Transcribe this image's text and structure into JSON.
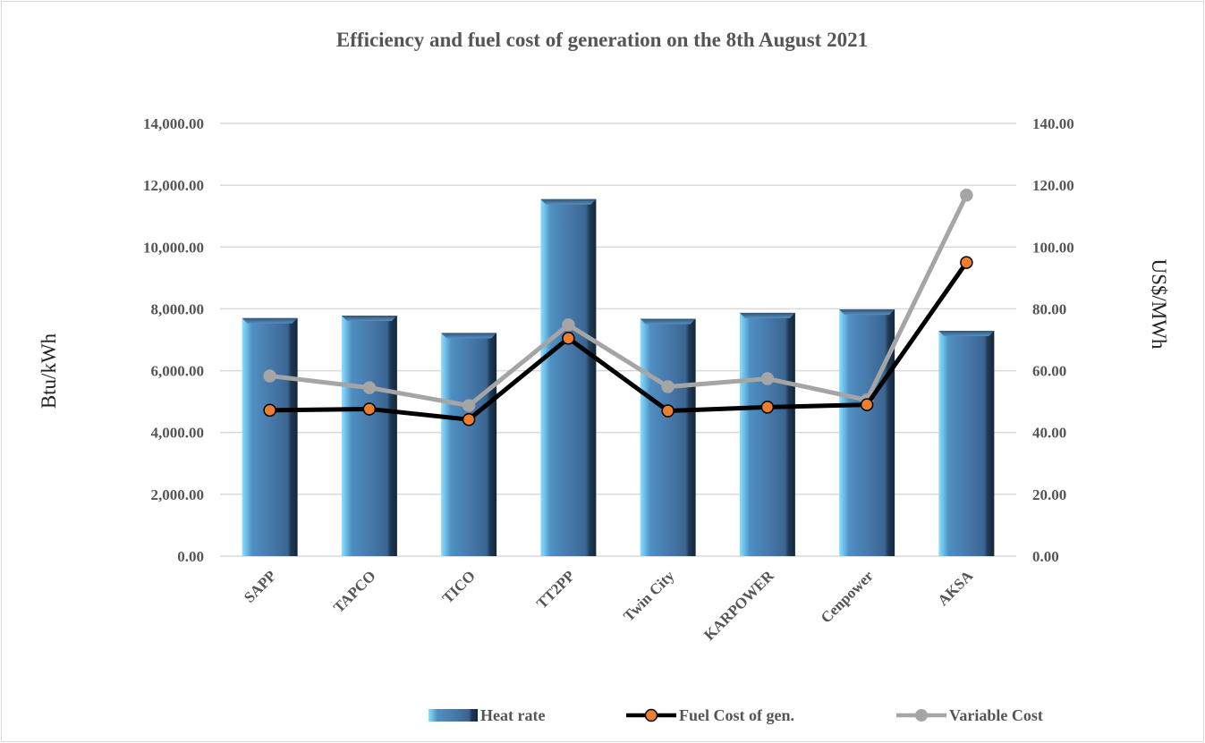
{
  "chart_data": {
    "type": "bar",
    "title": "Efficiency and fuel cost of generation on the 8th August 2021",
    "categories": [
      "SAPP",
      "TAPCO",
      "TICO",
      "TT2PP",
      "Twin City",
      "KARPOWER",
      "Cenpower",
      "AKSA"
    ],
    "y_left": {
      "label": "Btu/kWh",
      "range": [
        0,
        14000
      ],
      "ticks": [
        "0.00",
        "2,000.00",
        "4,000.00",
        "6,000.00",
        "8,000.00",
        "10,000.00",
        "12,000.00",
        "14,000.00"
      ]
    },
    "y_right": {
      "label": "US$/MWh",
      "range": [
        0,
        140
      ],
      "ticks": [
        "0.00",
        "20.00",
        "40.00",
        "60.00",
        "80.00",
        "100.00",
        "120.00",
        "140.00"
      ]
    },
    "series": [
      {
        "name": "Heat rate",
        "type": "bar",
        "axis": "left",
        "color": "#4a7fb0",
        "values": [
          7700,
          7780,
          7220,
          11550,
          7680,
          7870,
          7980,
          7290
        ]
      },
      {
        "name": "Fuel Cost of gen.",
        "type": "line",
        "axis": "right",
        "color": "#000000",
        "marker_color": "#ed7d31",
        "values": [
          47.2,
          47.6,
          44.2,
          70.5,
          47.0,
          48.2,
          49.0,
          95.0
        ]
      },
      {
        "name": "Variable Cost",
        "type": "line",
        "axis": "right",
        "color": "#a5a5a5",
        "marker_color": "#a5a5a5",
        "values": [
          58.3,
          54.5,
          48.7,
          74.8,
          54.8,
          57.4,
          50.5,
          116.8
        ]
      }
    ],
    "grid": true,
    "legend": "bottom"
  }
}
